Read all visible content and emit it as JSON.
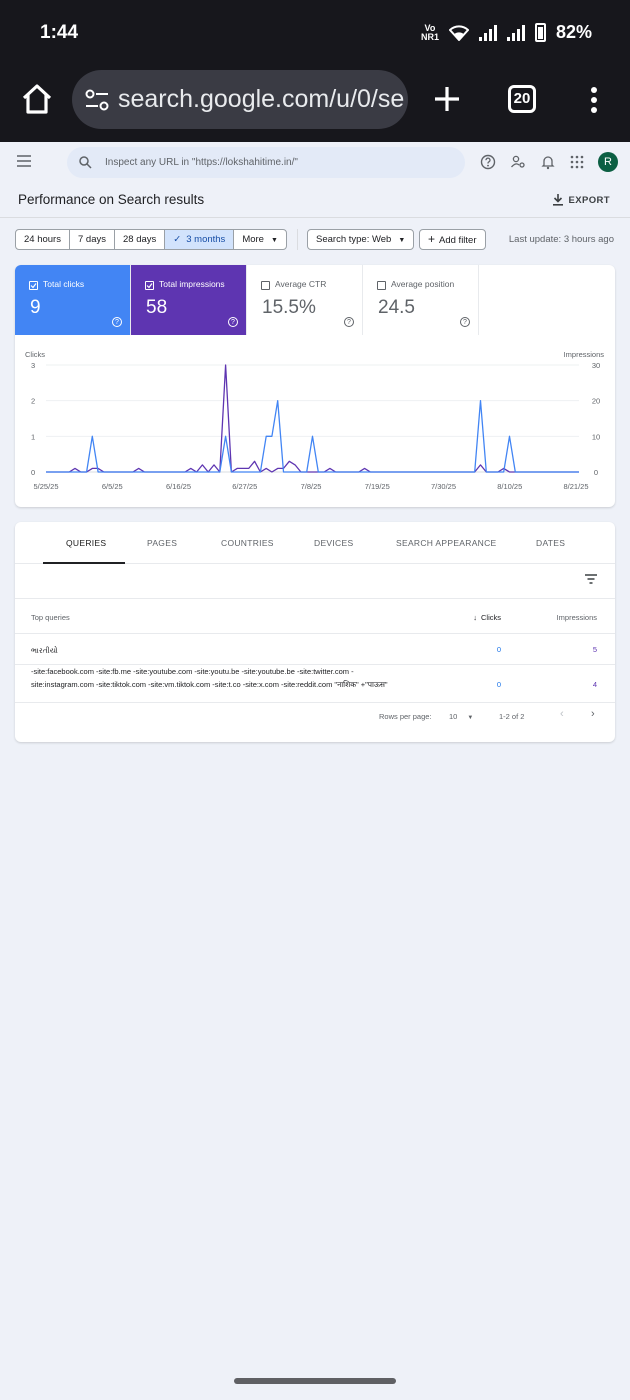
{
  "status_bar": {
    "time": "1:44",
    "network_label": "Vo NR1",
    "battery": "82%"
  },
  "browser": {
    "url": "search.google.com/u/0/se",
    "tab_count": "20"
  },
  "header": {
    "inspect_placeholder": "Inspect any URL in \"https://lokshahitime.in/\"",
    "avatar_letter": "R"
  },
  "page": {
    "title": "Performance on Search results",
    "export_label": "EXPORT"
  },
  "filters": {
    "date_ranges": [
      {
        "label": "24 hours",
        "active": false
      },
      {
        "label": "7 days",
        "active": false
      },
      {
        "label": "28 days",
        "active": false
      },
      {
        "label": "3 months",
        "active": true
      },
      {
        "label": "More",
        "active": false
      }
    ],
    "search_type": "Search type: Web",
    "add_filter": "Add filter",
    "last_update": "Last update: 3 hours ago"
  },
  "metrics": [
    {
      "label": "Total clicks",
      "value": "9",
      "checked": true,
      "color": "#4285f4"
    },
    {
      "label": "Total impressions",
      "value": "58",
      "checked": true,
      "color": "#5e35b1"
    },
    {
      "label": "Average CTR",
      "value": "15.5%",
      "checked": false
    },
    {
      "label": "Average position",
      "value": "24.5",
      "checked": false
    }
  ],
  "chart_data": {
    "type": "line",
    "left_axis_label": "Clicks",
    "right_axis_label": "Impressions",
    "left_ticks": [
      "3",
      "2",
      "1",
      "0"
    ],
    "right_ticks": [
      "30",
      "20",
      "10",
      "0"
    ],
    "ylim_left": [
      0,
      3
    ],
    "ylim_right": [
      0,
      30
    ],
    "x_ticks": [
      "5/25/25",
      "6/5/25",
      "6/16/25",
      "6/27/25",
      "7/8/25",
      "7/19/25",
      "7/30/25",
      "8/10/25",
      "8/21/25"
    ],
    "series": [
      {
        "name": "Clicks",
        "color": "#4285f4",
        "points": [
          [
            0,
            0
          ],
          [
            7,
            0
          ],
          [
            8,
            1
          ],
          [
            9,
            0
          ],
          [
            30,
            0
          ],
          [
            31,
            1
          ],
          [
            32,
            0
          ],
          [
            37,
            0
          ],
          [
            38,
            1
          ],
          [
            39,
            1
          ],
          [
            40,
            2
          ],
          [
            41,
            0
          ],
          [
            45,
            0
          ],
          [
            46,
            1
          ],
          [
            47,
            0
          ],
          [
            54,
            0
          ],
          [
            55,
            0
          ],
          [
            74,
            0
          ],
          [
            75,
            2
          ],
          [
            76,
            0
          ],
          [
            79,
            0
          ],
          [
            80,
            1
          ],
          [
            81,
            0
          ],
          [
            92,
            0
          ]
        ]
      },
      {
        "name": "Impressions",
        "color": "#5e35b1",
        "points": [
          [
            0,
            0
          ],
          [
            4,
            0
          ],
          [
            5,
            1
          ],
          [
            6,
            0
          ],
          [
            7,
            0
          ],
          [
            8,
            1
          ],
          [
            9,
            1
          ],
          [
            10,
            0
          ],
          [
            15,
            0
          ],
          [
            16,
            1
          ],
          [
            17,
            0
          ],
          [
            24,
            0
          ],
          [
            25,
            1
          ],
          [
            26,
            0
          ],
          [
            27,
            2
          ],
          [
            28,
            0
          ],
          [
            29,
            2
          ],
          [
            30,
            0
          ],
          [
            31,
            30
          ],
          [
            32,
            0
          ],
          [
            33,
            1
          ],
          [
            34,
            1
          ],
          [
            35,
            1
          ],
          [
            36,
            3
          ],
          [
            37,
            0
          ],
          [
            38,
            1
          ],
          [
            39,
            0
          ],
          [
            40,
            1
          ],
          [
            41,
            1
          ],
          [
            42,
            3
          ],
          [
            43,
            2
          ],
          [
            44,
            0
          ],
          [
            48,
            0
          ],
          [
            49,
            1
          ],
          [
            50,
            0
          ],
          [
            54,
            0
          ],
          [
            55,
            1
          ],
          [
            56,
            0
          ],
          [
            74,
            0
          ],
          [
            75,
            2
          ],
          [
            76,
            0
          ],
          [
            78,
            0
          ],
          [
            79,
            1
          ],
          [
            80,
            0
          ],
          [
            92,
            0
          ]
        ]
      }
    ]
  },
  "table": {
    "tabs": [
      "QUERIES",
      "PAGES",
      "COUNTRIES",
      "DEVICES",
      "SEARCH APPEARANCE",
      "DATES"
    ],
    "columns": {
      "query": "Top queries",
      "clicks": "Clicks",
      "impressions": "Impressions"
    },
    "rows": [
      {
        "query": "ભારતીયો",
        "clicks": "0",
        "impressions": "5"
      },
      {
        "query": "-site:facebook.com -site:fb.me -site:youtube.com -site:youtu.be -site:youtube.be -site:twitter.com -site:instagram.com -site:tiktok.com -site:vm.tiktok.com -site:t.co -site:x.com -site:reddit.com \"नाशिक\" +\"पाऊस\"",
        "clicks": "0",
        "impressions": "4"
      }
    ],
    "rows_per_page_label": "Rows per page:",
    "rows_per_page": "10",
    "range": "1-2 of 2"
  }
}
